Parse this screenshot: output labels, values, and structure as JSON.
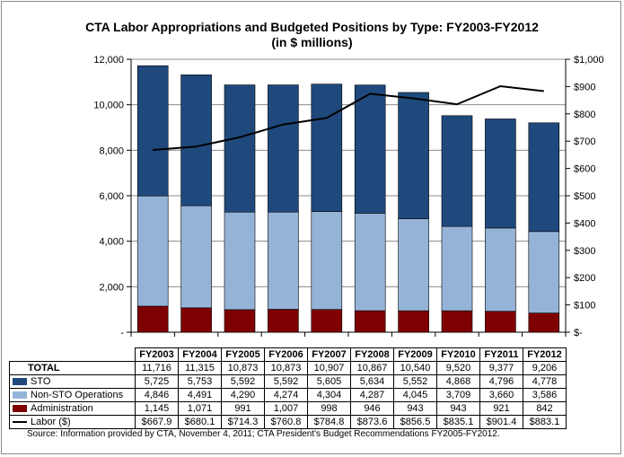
{
  "chart_data": {
    "type": "bar",
    "title": "CTA Labor Appropriations and Budgeted Positions by Type: FY2003-FY2012",
    "subtitle": "(in $ millions)",
    "categories": [
      "FY2003",
      "FY2004",
      "FY2005",
      "FY2006",
      "FY2007",
      "FY2008",
      "FY2009",
      "FY2010",
      "FY2011",
      "FY2012"
    ],
    "stacked": true,
    "series": [
      {
        "name": "STO",
        "values": [
          5725,
          5753,
          5592,
          5592,
          5605,
          5634,
          5552,
          4868,
          4796,
          4778
        ],
        "color": "#1f497d",
        "axis": "left"
      },
      {
        "name": "Non-STO Operations",
        "values": [
          4846,
          4491,
          4290,
          4274,
          4304,
          4287,
          4045,
          3709,
          3660,
          3586
        ],
        "color": "#95b3d7",
        "axis": "left"
      },
      {
        "name": "Administration",
        "values": [
          1145,
          1071,
          991,
          1007,
          998,
          946,
          943,
          943,
          921,
          842
        ],
        "color": "#7f0000",
        "axis": "left"
      },
      {
        "name": "Labor ($)",
        "type": "line",
        "values": [
          667.9,
          680.1,
          714.3,
          760.8,
          784.8,
          873.6,
          856.5,
          835.1,
          901.4,
          883.1
        ],
        "color": "#000000",
        "axis": "right"
      }
    ],
    "totals": [
      11716,
      11315,
      10873,
      10873,
      10907,
      10867,
      10540,
      9520,
      9377,
      9206
    ],
    "ylim_left": [
      0,
      12000
    ],
    "ylim_right": [
      0,
      1000
    ],
    "yticks_left": [
      "-",
      "2,000",
      "4,000",
      "6,000",
      "8,000",
      "10,000",
      "12,000"
    ],
    "yticks_right": [
      "$-",
      "$100",
      "$200",
      "$300",
      "$400",
      "$500",
      "$600",
      "$700",
      "$800",
      "$900",
      "$1,000"
    ],
    "grid": true
  },
  "table": {
    "total_label": "TOTAL",
    "rows": [
      {
        "label": "STO",
        "values": [
          "5,725",
          "5,753",
          "5,592",
          "5,592",
          "5,605",
          "5,634",
          "5,552",
          "4,868",
          "4,796",
          "4,778"
        ]
      },
      {
        "label": "Non-STO Operations",
        "values": [
          "4,846",
          "4,491",
          "4,290",
          "4,274",
          "4,304",
          "4,287",
          "4,045",
          "3,709",
          "3,660",
          "3,586"
        ]
      },
      {
        "label": "Administration",
        "values": [
          "1,145",
          "1,071",
          "991",
          "1,007",
          "998",
          "946",
          "943",
          "943",
          "921",
          "842"
        ]
      },
      {
        "label": "Labor ($)",
        "values": [
          "$667.9",
          "$680.1",
          "$714.3",
          "$760.8",
          "$784.8",
          "$873.6",
          "$856.5",
          "$835.1",
          "$901.4",
          "$883.1"
        ]
      }
    ],
    "total_values": [
      "11,716",
      "11,315",
      "10,873",
      "10,873",
      "10,907",
      "10,867",
      "10,540",
      "9,520",
      "9,377",
      "9,206"
    ]
  },
  "source": "Source: Information provided by CTA, November 4, 2011; CTA President's Budget Recommendations FY2005-FY2012."
}
